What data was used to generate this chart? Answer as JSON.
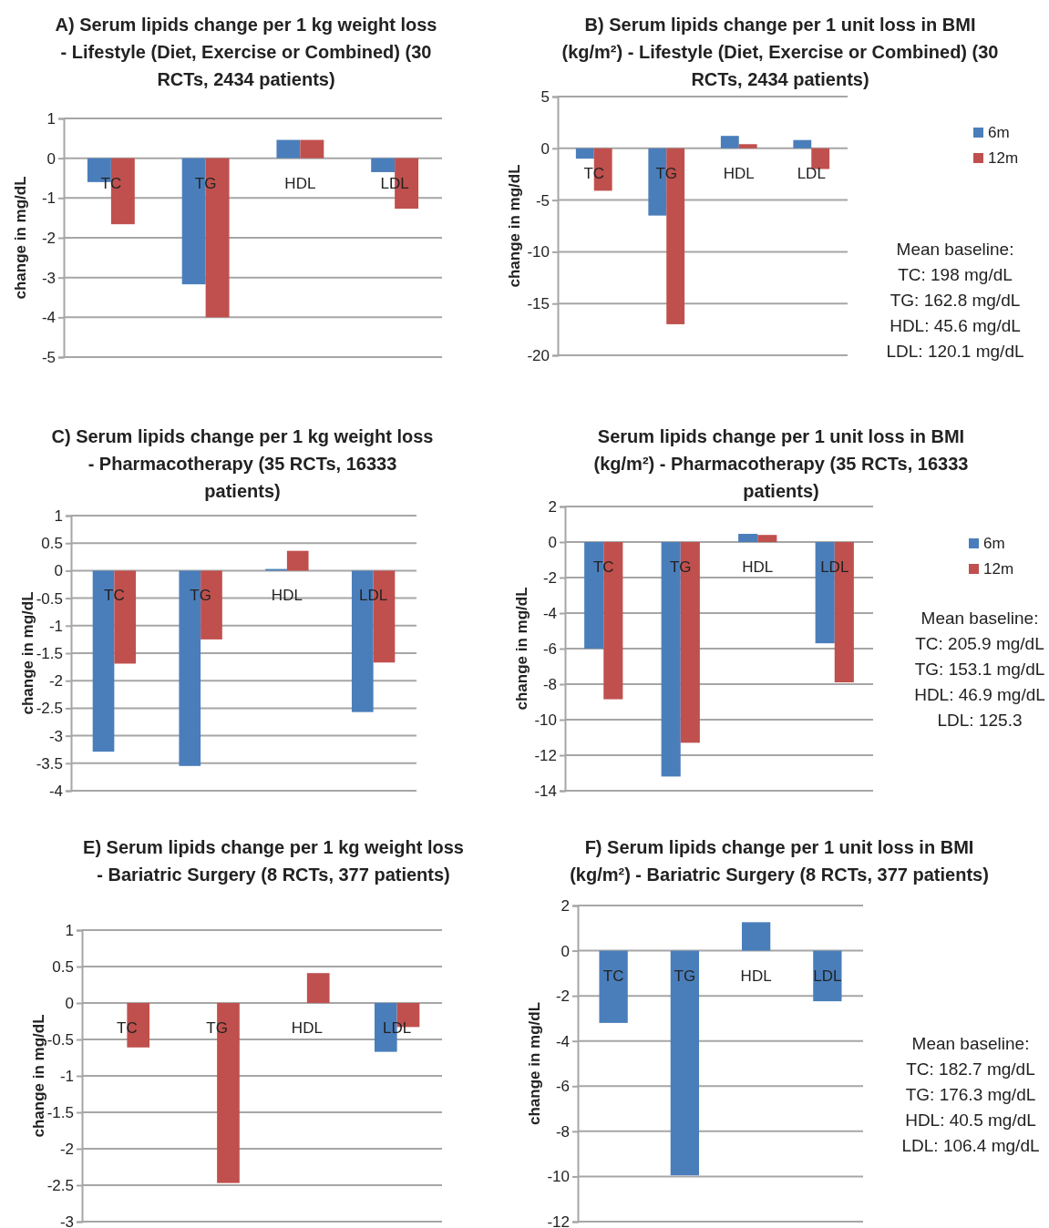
{
  "chart_data": [
    {
      "type": "bar",
      "title": "A) Serum lipids change per 1 kg weight loss - Lifestyle (Diet, Exercise or Combined) (30 RCTs, 2434 patients)",
      "ylabel": "change in mg/dL",
      "categories": [
        "TC",
        "TG",
        "HDL",
        "LDL"
      ],
      "series": [
        {
          "color": "#4a7ebb",
          "values": [
            -0.6,
            -3.17,
            0.46,
            -0.35
          ]
        },
        {
          "color": "#c0504d",
          "values": [
            -1.66,
            -4.0,
            0.46,
            -1.27
          ]
        }
      ],
      "ylim": [
        -5,
        1
      ],
      "yticks": [
        -5,
        -4,
        -3,
        -2,
        -1,
        0,
        1
      ],
      "grid": "y",
      "legend": false
    },
    {
      "type": "bar",
      "title": "B) Serum lipids change per 1 unit loss in BMI (kg/m²) - Lifestyle (Diet, Exercise or Combined) (30 RCTs, 2434 patients)",
      "ylabel": "change in mg/dL",
      "categories": [
        "TC",
        "TG",
        "HDL",
        "LDL"
      ],
      "series": [
        {
          "name": "6m",
          "color": "#4a7ebb",
          "values": [
            -1.0,
            -6.5,
            1.2,
            0.8
          ]
        },
        {
          "name": "12m",
          "color": "#c0504d",
          "values": [
            -4.1,
            -17.0,
            0.4,
            -2.0
          ]
        }
      ],
      "ylim": [
        -20,
        5
      ],
      "yticks": [
        -20,
        -15,
        -10,
        -5,
        0,
        5
      ],
      "grid": "y",
      "legend": "right",
      "annotations": [
        "Mean baseline:",
        "TC: 198 mg/dL",
        "TG: 162.8 mg/dL",
        "HDL: 45.6 mg/dL",
        "LDL: 120.1 mg/dL"
      ]
    },
    {
      "type": "bar",
      "title": "C) Serum lipids change per 1 kg weight loss - Pharmacotherapy (35 RCTs, 16333 patients)",
      "ylabel": "change in mg/dL",
      "categories": [
        "TC",
        "TG",
        "HDL",
        "LDL"
      ],
      "series": [
        {
          "color": "#4a7ebb",
          "values": [
            -3.29,
            -3.55,
            0.03,
            -2.57
          ]
        },
        {
          "color": "#c0504d",
          "values": [
            -1.69,
            -1.25,
            0.36,
            -1.67
          ]
        }
      ],
      "ylim": [
        -4,
        1
      ],
      "yticks": [
        -4,
        -3.5,
        -3,
        -2.5,
        -2,
        -1.5,
        -1,
        -0.5,
        0,
        0.5,
        1
      ],
      "grid": "y",
      "legend": false
    },
    {
      "type": "bar",
      "title": "Serum lipids change per 1 unit loss in BMI (kg/m²) - Pharmacotherapy (35 RCTs, 16333 patients)",
      "ylabel": "change in mg/dL",
      "categories": [
        "TC",
        "TG",
        "HDL",
        "LDL"
      ],
      "series": [
        {
          "name": "6m",
          "color": "#4a7ebb",
          "values": [
            -6.0,
            -13.2,
            0.46,
            -5.7
          ]
        },
        {
          "name": "12m",
          "color": "#c0504d",
          "values": [
            -8.85,
            -11.3,
            0.4,
            -7.9
          ]
        }
      ],
      "ylim": [
        -14,
        2
      ],
      "yticks": [
        -14,
        -12,
        -10,
        -8,
        -6,
        -4,
        -2,
        0,
        2
      ],
      "grid": "y",
      "legend": "right",
      "annotations": [
        "Mean baseline:",
        "TC: 205.9 mg/dL",
        "TG: 153.1 mg/dL",
        "HDL: 46.9 mg/dL",
        "LDL: 125.3"
      ]
    },
    {
      "type": "bar",
      "title": "E) Serum lipids change per 1 kg weight loss - Bariatric Surgery (8 RCTs, 377 patients)",
      "ylabel": "change in mg/dL",
      "categories": [
        "TC",
        "TG",
        "HDL",
        "LDL"
      ],
      "series": [
        {
          "color": "#4a7ebb",
          "values": [
            null,
            null,
            null,
            -0.67
          ]
        },
        {
          "color": "#c0504d",
          "values": [
            -0.61,
            -2.47,
            0.41,
            -0.33
          ]
        }
      ],
      "ylim": [
        -3,
        1
      ],
      "yticks": [
        -3,
        -2.5,
        -2,
        -1.5,
        -1,
        -0.5,
        0,
        0.5,
        1
      ],
      "grid": "y",
      "legend": false
    },
    {
      "type": "bar",
      "title": "F) Serum lipids change per 1 unit loss in BMI (kg/m²) - Bariatric Surgery (8 RCTs, 377 patients)",
      "ylabel": "change in mg/dL",
      "categories": [
        "TC",
        "TG",
        "HDL",
        "LDL"
      ],
      "series": [
        {
          "color": "#4a7ebb",
          "values": [
            -3.2,
            -9.95,
            1.26,
            -2.24
          ]
        }
      ],
      "ylim": [
        -12,
        2
      ],
      "yticks": [
        -12,
        -10,
        -8,
        -6,
        -4,
        -2,
        0,
        2
      ],
      "grid": "y",
      "legend": false,
      "annotations": [
        "Mean baseline:",
        "TC: 182.7 mg/dL",
        "TG: 176.3 mg/dL",
        "HDL: 40.5 mg/dL",
        "LDL: 106.4 mg/dL"
      ]
    }
  ]
}
